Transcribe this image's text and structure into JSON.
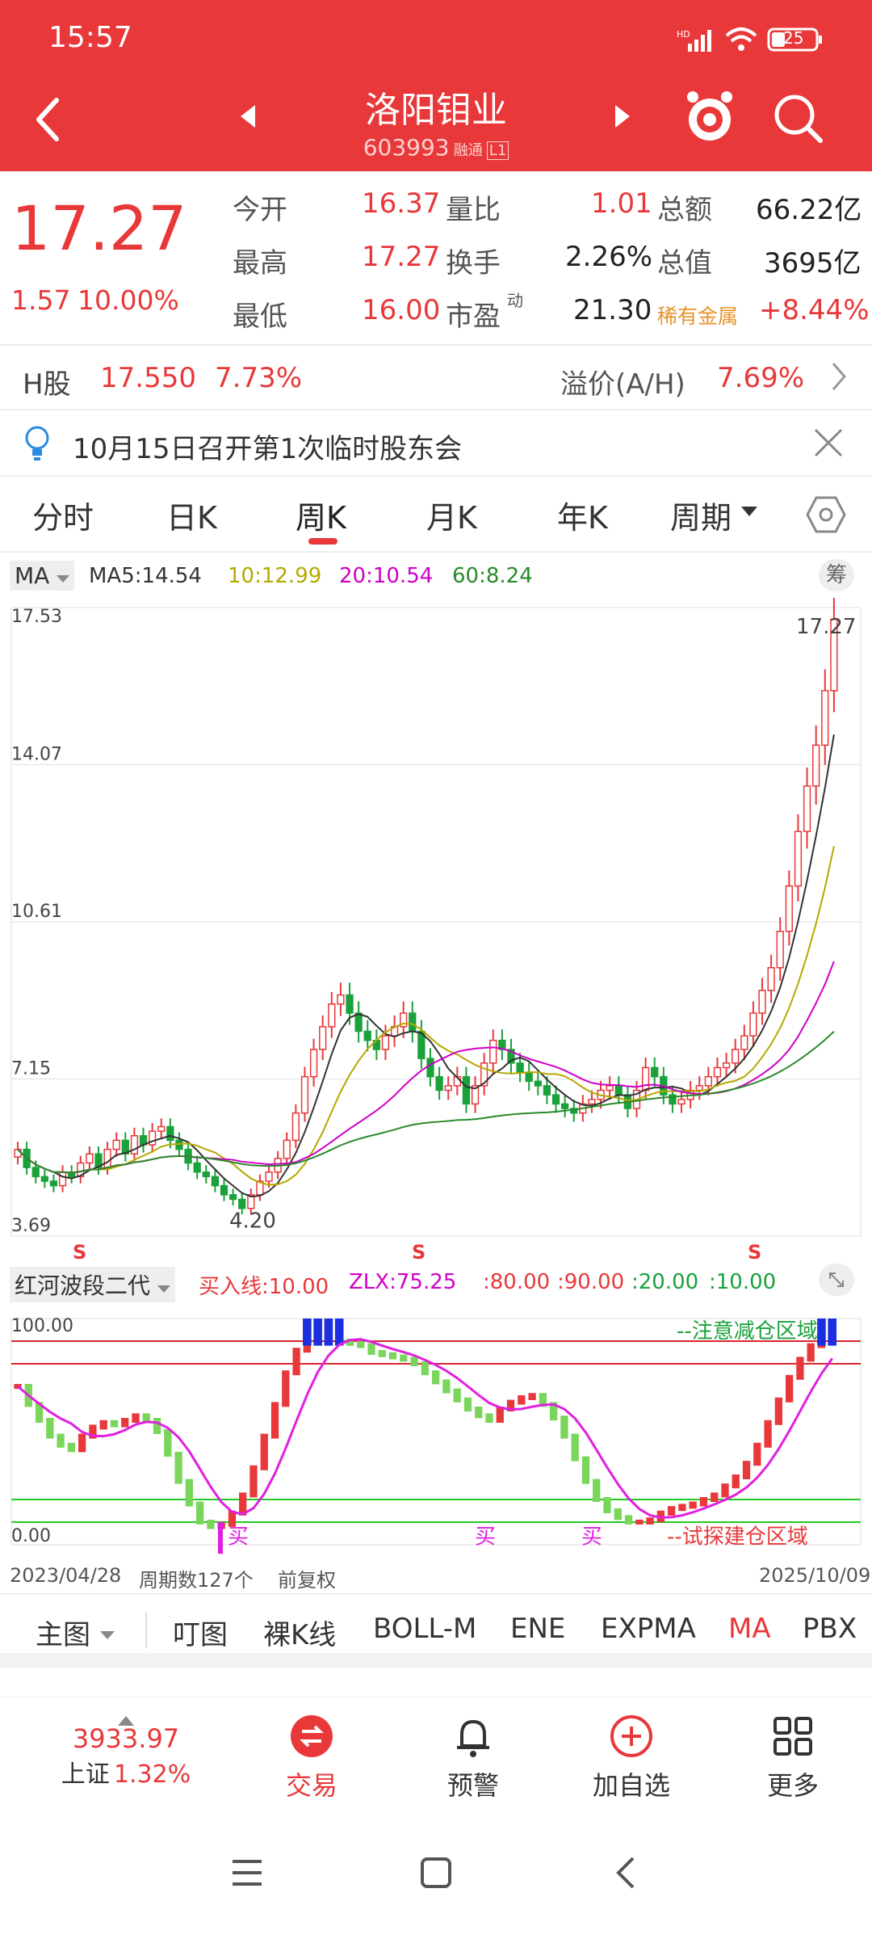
{
  "status": {
    "time": "15:57",
    "battery": "25"
  },
  "header": {
    "title": "洛阳钼业",
    "code": "603993",
    "badge1": "融",
    "badge2": "通",
    "badge3": "L1"
  },
  "quote": {
    "price": "17.27",
    "change": "1.57",
    "change_pct": "10.00%",
    "rows": [
      {
        "l1": "今开",
        "v1": "16.37",
        "l2": "量比",
        "v2": "1.01",
        "l3": "总额",
        "v3": "66.22亿"
      },
      {
        "l1": "最高",
        "v1": "17.27",
        "l2": "换手",
        "v2": "2.26%",
        "l3": "总值",
        "v3": "3695亿"
      },
      {
        "l1": "最低",
        "v1": "16.00",
        "l2": "市盈",
        "l2sup": "动",
        "v2": "21.30",
        "l3": "稀有金属",
        "v3": "+8.44%"
      }
    ]
  },
  "hshare": {
    "label": "H股",
    "price": "17.550",
    "pct": "7.73%",
    "premium_label": "溢价(A/H)",
    "premium": "7.69%"
  },
  "notice": {
    "text": "10月15日召开第1次临时股东会"
  },
  "tabs": [
    "分时",
    "日K",
    "周K",
    "月K",
    "年K",
    "周期"
  ],
  "ma": {
    "selector": "MA",
    "ma5": "MA5:14.54",
    "ma10": "10:12.99",
    "ma20": "20:10.54",
    "ma60": "60:8.24",
    "chip": "筹"
  },
  "chart_data": [
    {
      "type": "candlestick",
      "ylabels": [
        "17.53",
        "14.07",
        "10.61",
        "7.15",
        "3.69"
      ],
      "ylim": [
        3.69,
        17.53
      ],
      "last_label": "17.27",
      "low_label": "4.20",
      "markers": [
        "S",
        "S",
        "S"
      ],
      "closes": [
        5.6,
        5.2,
        5.0,
        4.9,
        4.8,
        5.1,
        5.0,
        5.3,
        5.5,
        5.2,
        5.6,
        5.8,
        5.5,
        5.9,
        5.7,
        6.0,
        6.1,
        5.8,
        5.6,
        5.3,
        5.1,
        5.0,
        4.8,
        4.6,
        4.5,
        4.3,
        4.6,
        4.9,
        5.1,
        5.4,
        5.8,
        6.4,
        7.2,
        7.8,
        8.3,
        8.8,
        9.0,
        8.6,
        8.2,
        8.0,
        7.8,
        8.1,
        8.3,
        8.6,
        8.2,
        7.6,
        7.2,
        6.9,
        7.0,
        7.2,
        6.6,
        7.0,
        7.5,
        8.0,
        7.8,
        7.5,
        7.3,
        7.1,
        7.0,
        6.8,
        6.6,
        6.5,
        6.4,
        6.6,
        6.7,
        6.9,
        7.0,
        6.8,
        6.5,
        6.9,
        7.4,
        7.2,
        6.8,
        6.6,
        6.7,
        6.9,
        7.0,
        7.2,
        7.4,
        7.5,
        7.8,
        8.1,
        8.6,
        9.1,
        9.6,
        10.4,
        11.4,
        12.6,
        13.6,
        14.5,
        15.7,
        17.27
      ],
      "ma_lines": [
        {
          "name": "MA5",
          "color": "#333333"
        },
        {
          "name": "10",
          "color": "#b5a800"
        },
        {
          "name": "20",
          "color": "#d000c8"
        },
        {
          "name": "60",
          "color": "#2a8a2a"
        }
      ]
    },
    {
      "type": "oscillator",
      "ylabels": [
        "100.00",
        "0.00"
      ],
      "ylim": [
        0,
        100
      ],
      "levels": [
        80,
        90,
        20,
        10
      ],
      "values": [
        70,
        62,
        55,
        48,
        44,
        42,
        48,
        52,
        54,
        53,
        55,
        57,
        55,
        50,
        40,
        28,
        18,
        10,
        8,
        9,
        14,
        22,
        34,
        48,
        62,
        76,
        86,
        92,
        94,
        92,
        90,
        89,
        88,
        85,
        84,
        83,
        82,
        80,
        76,
        72,
        68,
        64,
        60,
        57,
        55,
        60,
        63,
        65,
        66,
        62,
        56,
        48,
        38,
        28,
        20,
        15,
        12,
        10,
        10,
        11,
        14,
        16,
        17,
        18,
        20,
        22,
        26,
        30,
        36,
        44,
        54,
        64,
        74,
        82,
        88,
        92,
        94
      ]
    }
  ],
  "indicator": {
    "name": "红河波段二代",
    "buy_line": "买入线:10.00",
    "zlx": "ZLX:75.25",
    "l80": ":80.00",
    "l90": ":90.00",
    "l20": ":20.00",
    "l10": ":10.00",
    "top_label": "100.00",
    "bottom_label": "0.00",
    "warn_label": "--注意减仓区域",
    "buy_zone_label": "--试探建仓区域",
    "buy_marks": [
      "买",
      "买",
      "买"
    ]
  },
  "footer_info": {
    "start": "2023/04/28",
    "count": "周期数127个",
    "adj": "前复权",
    "end": "2025/10/09"
  },
  "indicator_tabs": [
    "主图",
    "叮图",
    "裸K线",
    "BOLL-M",
    "ENE",
    "EXPMA",
    "MA",
    "PBX"
  ],
  "index": {
    "value": "3933.97",
    "name": "上证",
    "pct": "1.32%"
  },
  "nav": [
    "交易",
    "预警",
    "加自选",
    "更多"
  ]
}
